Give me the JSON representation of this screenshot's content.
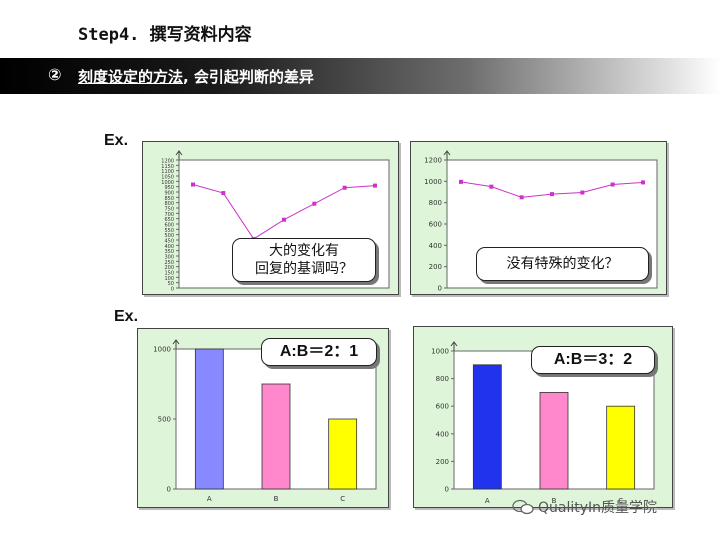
{
  "header": {
    "title": "Step4. 撰写资料内容",
    "section_mark": "②",
    "section_underlined": "刻度设定的方法",
    "section_rest": ", 会引起判断的差异"
  },
  "ex_labels": [
    "Ex.",
    "Ex."
  ],
  "callouts": {
    "chart1": "大的变化有\n回复的基调吗？",
    "chart2": "没有特殊的变化？",
    "chart3": "A:B＝2：1",
    "chart4": "A:B＝3：2"
  },
  "watermark": "QualityIn质量学院",
  "colors": {
    "panel_bg": "#dff5d9",
    "line": "#cc33cc",
    "bar_a1": "#8888ff",
    "bar_a2": "#2233ee",
    "bar_b": "#ff88cc",
    "bar_c": "#ffff00"
  },
  "chart_data": [
    {
      "type": "line",
      "x": [
        1,
        2,
        3,
        4,
        5,
        6,
        7
      ],
      "series": [
        {
          "values": [
            970,
            890,
            460,
            640,
            790,
            940,
            960
          ]
        }
      ],
      "ylim": [
        0,
        1200
      ],
      "yticks": [
        "0",
        "50",
        "100",
        "150",
        "200",
        "250",
        "300",
        "350",
        "400",
        "450",
        "500",
        "550",
        "600",
        "650",
        "700",
        "750",
        "800",
        "850",
        "900",
        "950",
        "1000",
        "1050",
        "1100",
        "1150",
        "1200"
      ],
      "grid": false
    },
    {
      "type": "line",
      "x": [
        1,
        2,
        3,
        4,
        5,
        6,
        7
      ],
      "series": [
        {
          "values": [
            995,
            950,
            850,
            880,
            895,
            970,
            990
          ]
        }
      ],
      "ylim": [
        0,
        1200
      ],
      "yticks": [
        "0",
        "200",
        "400",
        "600",
        "800",
        "1000",
        "1200"
      ],
      "grid": false
    },
    {
      "type": "bar",
      "categories": [
        "A",
        "B",
        "C"
      ],
      "values": [
        1000,
        750,
        500
      ],
      "ylim": [
        0,
        1000
      ],
      "yticks": [
        "0",
        "500",
        "1000"
      ],
      "grid": false
    },
    {
      "type": "bar",
      "categories": [
        "A",
        "B",
        "C"
      ],
      "values": [
        900,
        700,
        600
      ],
      "ylim": [
        0,
        1000
      ],
      "yticks": [
        "0",
        "200",
        "400",
        "600",
        "800",
        "1000"
      ],
      "grid": false
    }
  ]
}
